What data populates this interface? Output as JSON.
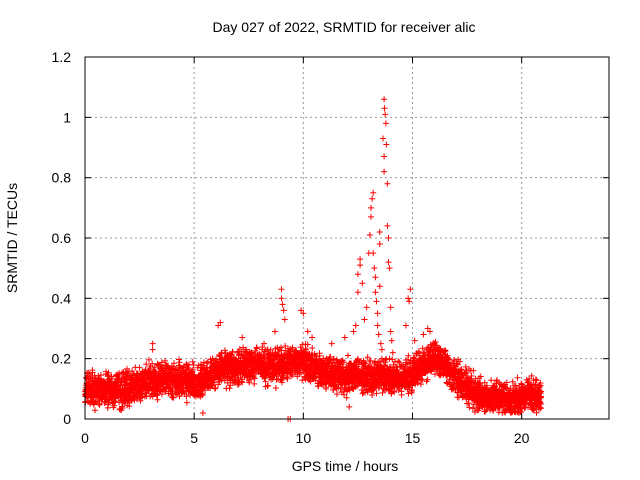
{
  "chart_data": {
    "type": "scatter",
    "title": "Day 027 of 2022, SRMTID for receiver alic",
    "xlabel": "GPS time / hours",
    "ylabel": "SRMTID / TECUs",
    "xlim": [
      0,
      24
    ],
    "ylim": [
      0,
      1.2
    ],
    "xticks": [
      0,
      5,
      10,
      15,
      20
    ],
    "xtick_labels": [
      "0",
      "5",
      "10",
      "15",
      "20"
    ],
    "yticks": [
      0,
      0.2,
      0.4,
      0.6,
      0.8,
      1.0,
      1.2
    ],
    "ytick_labels": [
      "0",
      "0.2",
      "0.4",
      "0.6",
      "0.8",
      "1",
      "1.2"
    ],
    "grid": true,
    "marker": "+",
    "color": "#ff0000",
    "series": [
      {
        "name": "SRMTID",
        "profile_x": [
          0,
          0.5,
          1,
          1.5,
          2,
          2.5,
          3,
          3.5,
          4,
          4.5,
          5,
          5.5,
          6,
          6.5,
          7,
          7.5,
          8,
          8.5,
          9,
          9.5,
          10,
          10.5,
          11,
          11.5,
          12,
          12.5,
          13,
          13.5,
          14,
          14.5,
          15,
          15.5,
          16,
          16.5,
          17,
          17.5,
          18,
          18.5,
          19,
          19.5,
          20,
          20.5,
          20.9
        ],
        "profile_y": [
          0.09,
          0.1,
          0.1,
          0.09,
          0.1,
          0.11,
          0.13,
          0.13,
          0.13,
          0.13,
          0.12,
          0.13,
          0.16,
          0.17,
          0.17,
          0.18,
          0.18,
          0.17,
          0.18,
          0.19,
          0.19,
          0.17,
          0.15,
          0.15,
          0.14,
          0.15,
          0.14,
          0.15,
          0.13,
          0.14,
          0.15,
          0.18,
          0.19,
          0.18,
          0.14,
          0.1,
          0.08,
          0.07,
          0.07,
          0.06,
          0.07,
          0.08,
          0.07
        ],
        "spread": 0.04,
        "points": [
          [
            3.1,
            0.25
          ],
          [
            3.1,
            0.23
          ],
          [
            6.1,
            0.31
          ],
          [
            6.2,
            0.32
          ],
          [
            7.2,
            0.27
          ],
          [
            8.2,
            0.25
          ],
          [
            8.7,
            0.29
          ],
          [
            9.0,
            0.43
          ],
          [
            9.0,
            0.4
          ],
          [
            9.05,
            0.38
          ],
          [
            9.1,
            0.36
          ],
          [
            9.15,
            0.33
          ],
          [
            9.3,
            0.0
          ],
          [
            9.9,
            0.36
          ],
          [
            10.0,
            0.35
          ],
          [
            10.2,
            0.29
          ],
          [
            10.4,
            0.27
          ],
          [
            11.3,
            0.25
          ],
          [
            11.9,
            0.27
          ],
          [
            12.3,
            0.29
          ],
          [
            12.4,
            0.31
          ],
          [
            12.5,
            0.42
          ],
          [
            12.5,
            0.48
          ],
          [
            12.6,
            0.51
          ],
          [
            12.6,
            0.53
          ],
          [
            12.7,
            0.45
          ],
          [
            12.8,
            0.33
          ],
          [
            12.9,
            0.37
          ],
          [
            13.0,
            0.55
          ],
          [
            13.05,
            0.61
          ],
          [
            13.1,
            0.67
          ],
          [
            13.1,
            0.7
          ],
          [
            13.15,
            0.73
          ],
          [
            13.2,
            0.75
          ],
          [
            13.2,
            0.55
          ],
          [
            13.25,
            0.5
          ],
          [
            13.3,
            0.47
          ],
          [
            13.3,
            0.42
          ],
          [
            13.35,
            0.39
          ],
          [
            13.4,
            0.35
          ],
          [
            13.4,
            0.31
          ],
          [
            13.45,
            0.28
          ],
          [
            13.5,
            0.58
          ],
          [
            13.5,
            0.62
          ],
          [
            13.5,
            0.44
          ],
          [
            13.55,
            0.25
          ],
          [
            13.6,
            0.23
          ],
          [
            13.6,
            0.2
          ],
          [
            13.65,
            0.93
          ],
          [
            13.7,
            0.87
          ],
          [
            13.7,
            0.82
          ],
          [
            13.7,
            1.06
          ],
          [
            13.72,
            1.03
          ],
          [
            13.75,
            1.01
          ],
          [
            13.78,
            0.98
          ],
          [
            13.8,
            0.91
          ],
          [
            13.85,
            0.78
          ],
          [
            13.85,
            0.64
          ],
          [
            13.9,
            0.6
          ],
          [
            13.9,
            0.52
          ],
          [
            13.95,
            0.5
          ],
          [
            14.0,
            0.37
          ],
          [
            14.0,
            0.29
          ],
          [
            14.05,
            0.26
          ],
          [
            14.1,
            0.22
          ],
          [
            14.2,
            0.19
          ],
          [
            14.8,
            0.4
          ],
          [
            14.85,
            0.39
          ],
          [
            14.9,
            0.43
          ],
          [
            14.7,
            0.31
          ],
          [
            15.1,
            0.26
          ],
          [
            15.3,
            0.22
          ],
          [
            15.5,
            0.28
          ],
          [
            15.7,
            0.3
          ],
          [
            15.8,
            0.29
          ],
          [
            16.0,
            0.25
          ],
          [
            16.3,
            0.22
          ],
          [
            16.6,
            0.21
          ],
          [
            9.4,
            0.0
          ],
          [
            5.4,
            0.02
          ],
          [
            19.2,
            0.03
          ],
          [
            12.1,
            0.04
          ],
          [
            14.5,
            0.08
          ],
          [
            16.9,
            0.1
          ]
        ]
      }
    ]
  }
}
